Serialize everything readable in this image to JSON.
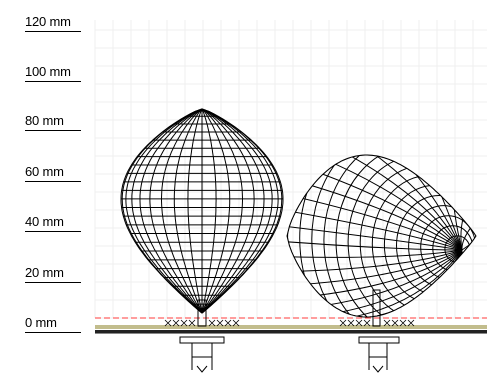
{
  "scale": {
    "unit": "mm",
    "labels": [
      "120 mm",
      "100 mm",
      "80 mm",
      "60 mm",
      "40 mm",
      "20 mm",
      "0 mm"
    ]
  },
  "colors": {
    "grid": "#eeeeee",
    "mesh": "#000000",
    "base_line": "#ff3b3b",
    "platform": "#333333",
    "platform_pattern": "#b7b07a"
  },
  "objects": [
    {
      "name": "egg-upright",
      "orientation": "upright"
    },
    {
      "name": "egg-lying",
      "orientation": "lying"
    }
  ]
}
